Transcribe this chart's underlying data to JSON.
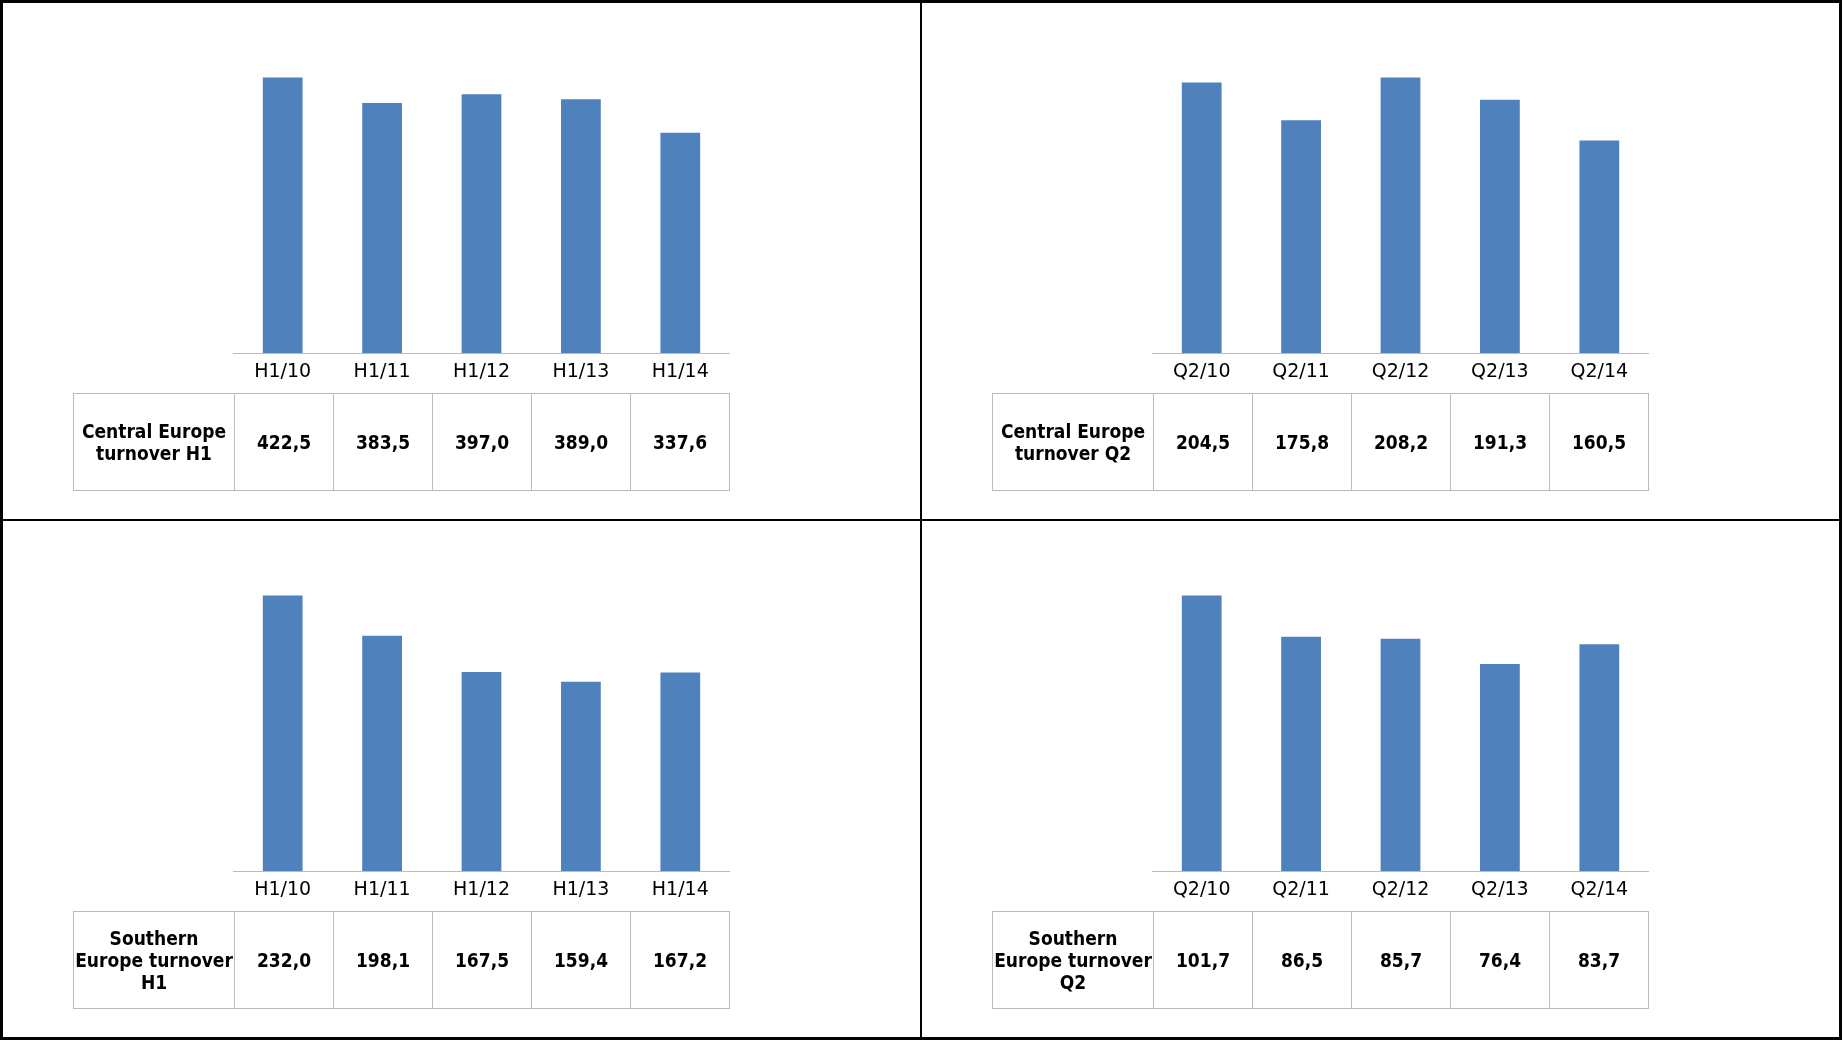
{
  "chart_data": [
    {
      "type": "bar",
      "categories": [
        "H1/10",
        "H1/11",
        "H1/12",
        "H1/13",
        "H1/14"
      ],
      "legend": false,
      "grid": false,
      "series": [
        {
          "name": "Central Europe turnover H1",
          "color": "#4f81bd",
          "values": [
            422.5,
            383.5,
            397.0,
            389.0,
            337.6
          ],
          "value_labels": [
            "422,5",
            "383,5",
            "397,0",
            "389,0",
            "337,6"
          ]
        }
      ]
    },
    {
      "type": "bar",
      "categories": [
        "Q2/10",
        "Q2/11",
        "Q2/12",
        "Q2/13",
        "Q2/14"
      ],
      "legend": false,
      "grid": false,
      "series": [
        {
          "name": "Central Europe turnover Q2",
          "color": "#4f81bd",
          "values": [
            204.5,
            175.8,
            208.2,
            191.3,
            160.5
          ],
          "value_labels": [
            "204,5",
            "175,8",
            "208,2",
            "191,3",
            "160,5"
          ]
        }
      ]
    },
    {
      "type": "bar",
      "categories": [
        "H1/10",
        "H1/11",
        "H1/12",
        "H1/13",
        "H1/14"
      ],
      "legend": false,
      "grid": false,
      "series": [
        {
          "name": "Southern Europe turnover H1",
          "color": "#4f81bd",
          "values": [
            232.0,
            198.1,
            167.5,
            159.4,
            167.2
          ],
          "value_labels": [
            "232,0",
            "198,1",
            "167,5",
            "159,4",
            "167,2"
          ]
        }
      ]
    },
    {
      "type": "bar",
      "categories": [
        "Q2/10",
        "Q2/11",
        "Q2/12",
        "Q2/13",
        "Q2/14"
      ],
      "legend": false,
      "grid": false,
      "series": [
        {
          "name": "Southern Europe turnover Q2",
          "color": "#4f81bd",
          "values": [
            101.7,
            86.5,
            85.7,
            76.4,
            83.7
          ],
          "value_labels": [
            "101,7",
            "86,5",
            "85,7",
            "76,4",
            "83,7"
          ]
        }
      ]
    }
  ]
}
